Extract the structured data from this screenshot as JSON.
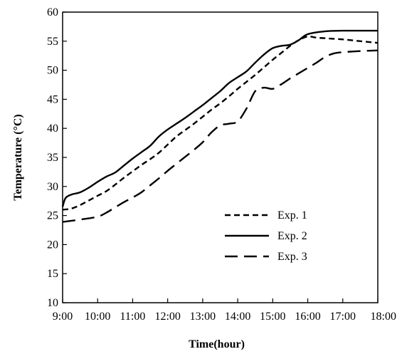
{
  "chart_data": {
    "type": "line",
    "title": "",
    "xlabel": "Time(hour)",
    "ylabel": "Temperature (°C)",
    "x_tick_labels": [
      "9:00",
      "10:00",
      "11:00",
      "12:00",
      "13:00",
      "14:00",
      "15:00",
      "16:00",
      "17:00",
      "18:00"
    ],
    "y_tick_labels": [
      "10",
      "15",
      "20",
      "25",
      "30",
      "35",
      "40",
      "45",
      "50",
      "55",
      "60"
    ],
    "xlim": [
      "9:00",
      "18:00"
    ],
    "ylim": [
      10,
      60
    ],
    "grid": false,
    "legend_position": "center-right",
    "series": [
      {
        "name": "Exp. 1",
        "dash": "dashed",
        "color": "#000000",
        "points": [
          [
            "9:00",
            26.0
          ],
          [
            "9:15",
            26.2
          ],
          [
            "9:30",
            26.8
          ],
          [
            "9:45",
            27.6
          ],
          [
            "10:00",
            28.4
          ],
          [
            "10:15",
            29.2
          ],
          [
            "10:30",
            30.3
          ],
          [
            "10:45",
            31.5
          ],
          [
            "11:00",
            32.6
          ],
          [
            "11:15",
            33.7
          ],
          [
            "11:30",
            34.7
          ],
          [
            "11:45",
            35.8
          ],
          [
            "12:00",
            37.2
          ],
          [
            "12:15",
            38.6
          ],
          [
            "12:30",
            39.7
          ],
          [
            "12:45",
            40.8
          ],
          [
            "13:00",
            42.0
          ],
          [
            "13:15",
            43.2
          ],
          [
            "13:30",
            44.3
          ],
          [
            "13:45",
            45.5
          ],
          [
            "14:00",
            46.8
          ],
          [
            "14:15",
            48.0
          ],
          [
            "14:30",
            49.2
          ],
          [
            "14:45",
            50.5
          ],
          [
            "15:00",
            51.8
          ],
          [
            "15:15",
            53.0
          ],
          [
            "15:30",
            54.2
          ],
          [
            "15:45",
            55.2
          ],
          [
            "16:00",
            55.8
          ],
          [
            "16:15",
            55.6
          ],
          [
            "16:30",
            55.5
          ],
          [
            "17:00",
            55.3
          ],
          [
            "17:30",
            55.0
          ],
          [
            "18:00",
            54.7
          ]
        ]
      },
      {
        "name": "Exp. 2",
        "dash": "solid",
        "color": "#000000",
        "points": [
          [
            "9:00",
            26.5
          ],
          [
            "9:05",
            28.0
          ],
          [
            "9:15",
            28.6
          ],
          [
            "9:30",
            29.0
          ],
          [
            "9:45",
            29.8
          ],
          [
            "10:00",
            30.8
          ],
          [
            "10:15",
            31.7
          ],
          [
            "10:30",
            32.4
          ],
          [
            "10:45",
            33.6
          ],
          [
            "11:00",
            34.8
          ],
          [
            "11:15",
            35.9
          ],
          [
            "11:30",
            37.0
          ],
          [
            "11:45",
            38.6
          ],
          [
            "12:00",
            39.8
          ],
          [
            "12:15",
            40.8
          ],
          [
            "12:30",
            41.8
          ],
          [
            "12:45",
            42.9
          ],
          [
            "13:00",
            44.0
          ],
          [
            "13:15",
            45.2
          ],
          [
            "13:30",
            46.4
          ],
          [
            "13:45",
            47.8
          ],
          [
            "14:00",
            48.8
          ],
          [
            "14:15",
            49.8
          ],
          [
            "14:30",
            51.3
          ],
          [
            "14:45",
            52.7
          ],
          [
            "15:00",
            53.8
          ],
          [
            "15:15",
            54.2
          ],
          [
            "15:30",
            54.4
          ],
          [
            "15:45",
            55.2
          ],
          [
            "16:00",
            56.2
          ],
          [
            "16:30",
            56.7
          ],
          [
            "17:00",
            56.8
          ],
          [
            "17:30",
            56.8
          ],
          [
            "18:00",
            56.8
          ]
        ]
      },
      {
        "name": "Exp. 3",
        "dash": "long-dashed",
        "color": "#000000",
        "points": [
          [
            "9:00",
            23.9
          ],
          [
            "9:30",
            24.3
          ],
          [
            "10:00",
            24.8
          ],
          [
            "10:15",
            25.5
          ],
          [
            "10:30",
            26.4
          ],
          [
            "10:45",
            27.3
          ],
          [
            "11:00",
            28.1
          ],
          [
            "11:15",
            29.0
          ],
          [
            "11:30",
            30.2
          ],
          [
            "11:45",
            31.4
          ],
          [
            "12:00",
            32.7
          ],
          [
            "12:15",
            33.9
          ],
          [
            "12:30",
            35.1
          ],
          [
            "12:45",
            36.3
          ],
          [
            "13:00",
            37.6
          ],
          [
            "13:15",
            39.3
          ],
          [
            "13:30",
            40.5
          ],
          [
            "13:45",
            40.8
          ],
          [
            "14:00",
            41.2
          ],
          [
            "14:15",
            43.4
          ],
          [
            "14:30",
            46.4
          ],
          [
            "14:45",
            47.0
          ],
          [
            "15:00",
            46.8
          ],
          [
            "15:15",
            47.6
          ],
          [
            "15:30",
            48.6
          ],
          [
            "15:45",
            49.5
          ],
          [
            "16:00",
            50.4
          ],
          [
            "16:15",
            51.3
          ],
          [
            "16:30",
            52.3
          ],
          [
            "16:45",
            52.9
          ],
          [
            "17:00",
            53.1
          ],
          [
            "17:30",
            53.3
          ],
          [
            "18:00",
            53.4
          ]
        ]
      }
    ]
  }
}
